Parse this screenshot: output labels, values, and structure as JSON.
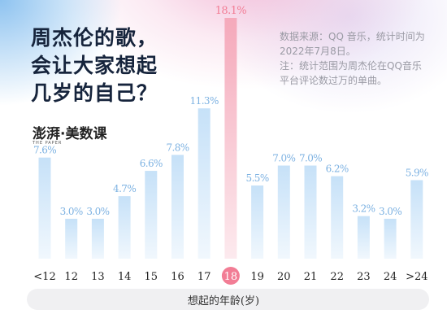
{
  "title_lines": [
    "周杰伦的歌，",
    "会让大家想起",
    "几岁的自己？"
  ],
  "note_lines": [
    "数据来源：QQ 音乐，统计时间为2022年7月8日。",
    "注：统计范围为周杰伦在QQ音乐平台评论数过万的单曲。"
  ],
  "brand": {
    "name": "澎湃·美数课",
    "sub": "THE PAPER"
  },
  "colors": {
    "bar": "#c6e1f8",
    "highlight": "#f27d95",
    "highlight_fill": "#f5aabb",
    "label": "#7db2e2",
    "title": "#16243c"
  },
  "chart_data": {
    "type": "bar",
    "categories": [
      "<12",
      "12",
      "13",
      "14",
      "15",
      "16",
      "17",
      "18",
      "19",
      "20",
      "21",
      "22",
      "23",
      "24",
      ">24"
    ],
    "values": [
      7.6,
      3.0,
      3.0,
      4.7,
      6.6,
      7.8,
      11.3,
      18.1,
      5.5,
      7.0,
      7.0,
      6.2,
      3.2,
      3.0,
      5.9
    ],
    "value_labels": [
      "7.6%",
      "3.0%",
      "3.0%",
      "4.7%",
      "6.6%",
      "7.8%",
      "11.3%",
      "18.1%",
      "5.5%",
      "7.0%",
      "7.0%",
      "6.2%",
      "3.2%",
      "3.0%",
      "5.9%"
    ],
    "highlight": "18",
    "xlabel": "想起的年龄(岁)",
    "ylabel": "",
    "ylim": [
      0,
      18.1
    ],
    "grid": false
  }
}
